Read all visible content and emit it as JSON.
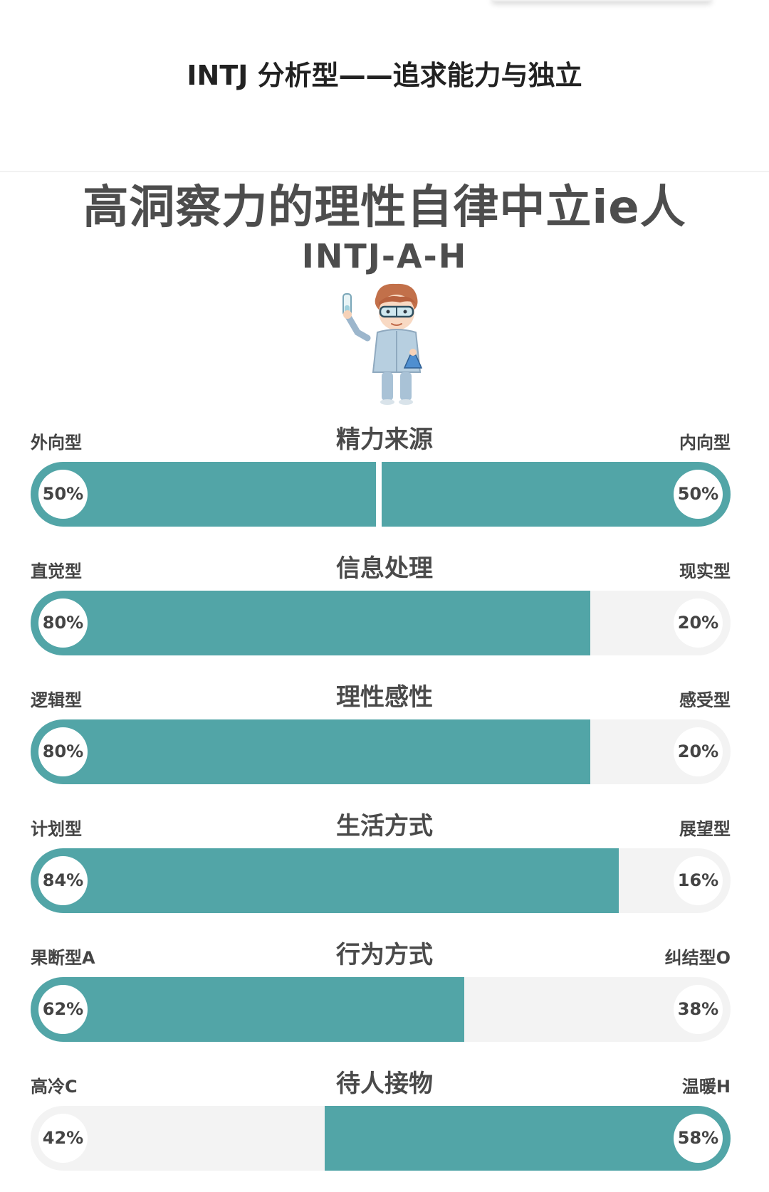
{
  "header": {
    "title": "INTJ 分析型——追求能力与独立"
  },
  "profile": {
    "headline": "高洞察力的理性自律中立ie人",
    "type_code": "INTJ-A-H",
    "mascot_icon": "scientist-holding-test-tube"
  },
  "colors": {
    "accent": "#52a5a7",
    "track": "#f3f3f3",
    "text": "#4d4d4d"
  },
  "dimensions": [
    {
      "title": "精力来源",
      "left_label": "外向型",
      "right_label": "内向型",
      "left_pct": "50%",
      "right_pct": "50%",
      "left_value": 50,
      "right_value": 50,
      "dominant": "both"
    },
    {
      "title": "信息处理",
      "left_label": "直觉型",
      "right_label": "现实型",
      "left_pct": "80%",
      "right_pct": "20%",
      "left_value": 80,
      "right_value": 20,
      "dominant": "left"
    },
    {
      "title": "理性感性",
      "left_label": "逻辑型",
      "right_label": "感受型",
      "left_pct": "80%",
      "right_pct": "20%",
      "left_value": 80,
      "right_value": 20,
      "dominant": "left"
    },
    {
      "title": "生活方式",
      "left_label": "计划型",
      "right_label": "展望型",
      "left_pct": "84%",
      "right_pct": "16%",
      "left_value": 84,
      "right_value": 16,
      "dominant": "left"
    },
    {
      "title": "行为方式",
      "left_label": "果断型A",
      "right_label": "纠结型O",
      "left_pct": "62%",
      "right_pct": "38%",
      "left_value": 62,
      "right_value": 38,
      "dominant": "left"
    },
    {
      "title": "待人接物",
      "left_label": "高冷C",
      "right_label": "温暖H",
      "left_pct": "42%",
      "right_pct": "58%",
      "left_value": 42,
      "right_value": 58,
      "dominant": "right"
    }
  ]
}
